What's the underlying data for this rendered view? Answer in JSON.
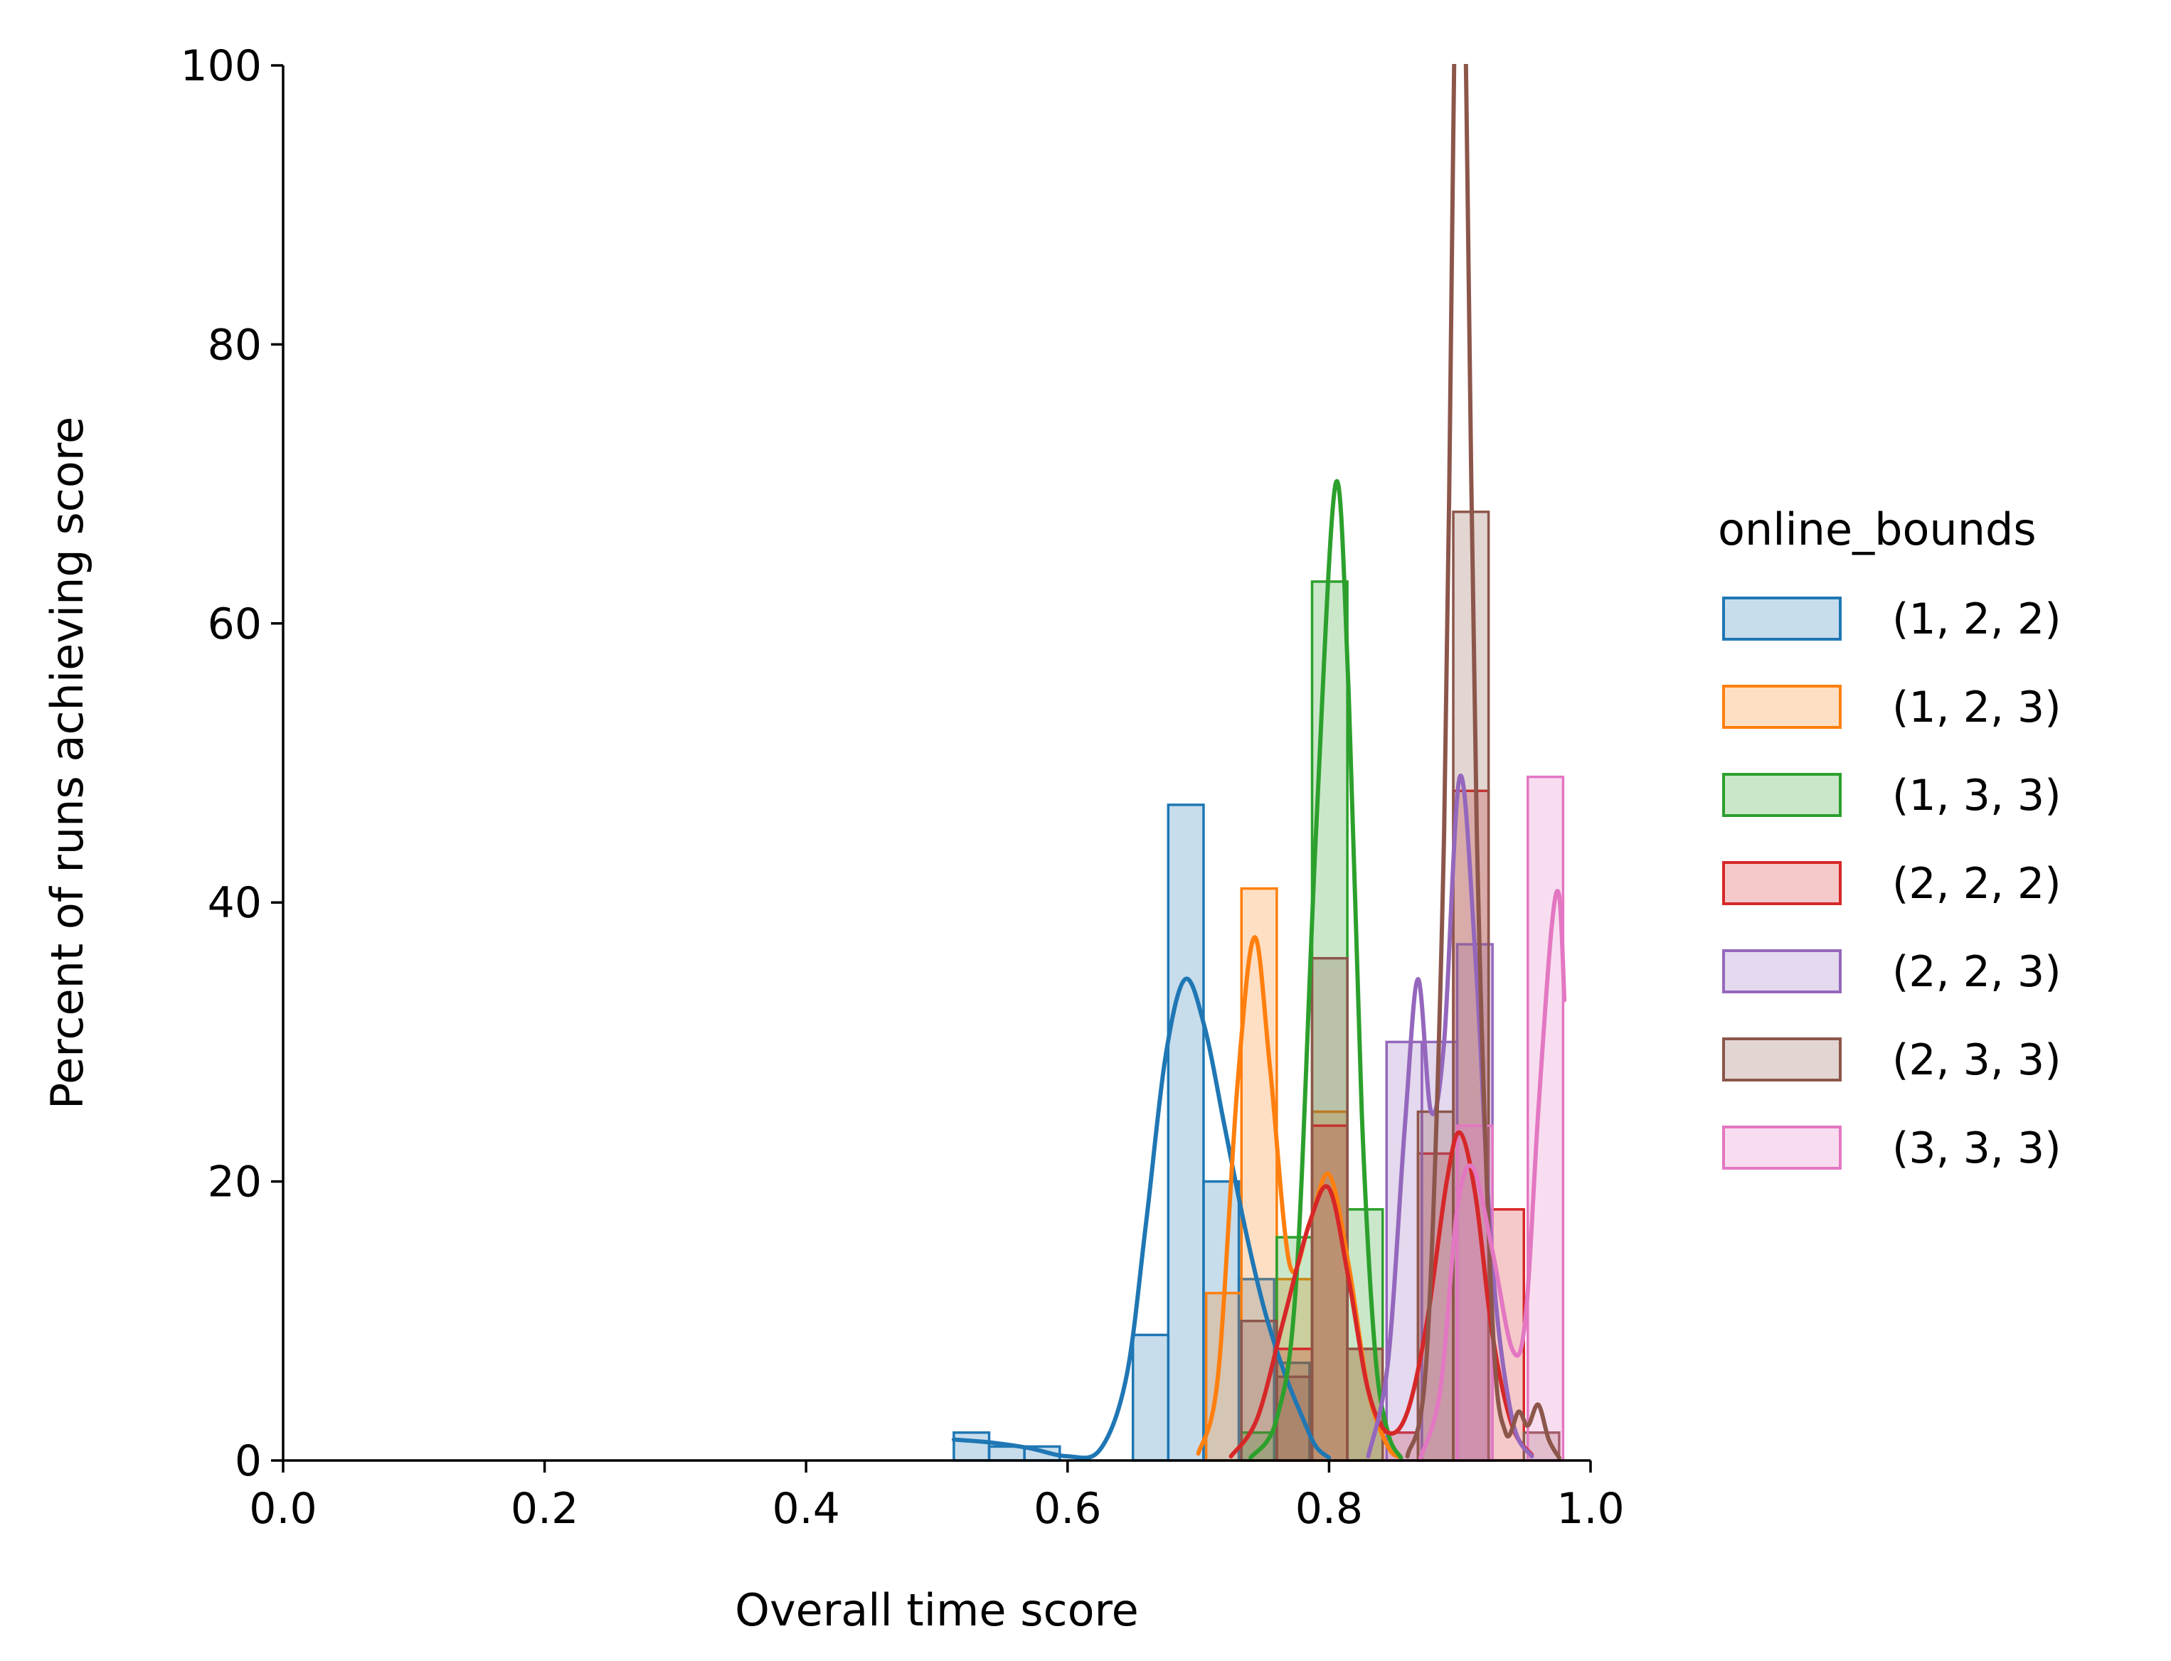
{
  "chart_data": {
    "type": "histogram",
    "xlabel": "Overall time score",
    "ylabel": "Percent of runs achieving score",
    "xlim": [
      0.0,
      1.0
    ],
    "ylim": [
      0,
      100
    ],
    "xticks": [
      "0.0",
      "0.2",
      "0.4",
      "0.6",
      "0.8",
      "1.0"
    ],
    "yticks": [
      "0",
      "20",
      "40",
      "60",
      "80",
      "100"
    ],
    "grid": false,
    "legend": {
      "title": "online_bounds",
      "placement": "right"
    },
    "kde": true,
    "series": [
      {
        "name": "(1, 2, 2)",
        "color": "#1f77b4",
        "bins": [
          {
            "x0": 0.513,
            "x1": 0.54,
            "y": 2
          },
          {
            "x0": 0.54,
            "x1": 0.567,
            "y": 1
          },
          {
            "x0": 0.567,
            "x1": 0.594,
            "y": 1
          },
          {
            "x0": 0.65,
            "x1": 0.677,
            "y": 9
          },
          {
            "x0": 0.677,
            "x1": 0.704,
            "y": 47
          },
          {
            "x0": 0.704,
            "x1": 0.731,
            "y": 20
          },
          {
            "x0": 0.731,
            "x1": 0.758,
            "y": 13
          },
          {
            "x0": 0.758,
            "x1": 0.785,
            "y": 7
          }
        ],
        "kde": [
          [
            0.513,
            1.5
          ],
          [
            0.54,
            1.3
          ],
          [
            0.57,
            0.9
          ],
          [
            0.6,
            0.3
          ],
          [
            0.625,
            0.8
          ],
          [
            0.645,
            6
          ],
          [
            0.66,
            17
          ],
          [
            0.675,
            29
          ],
          [
            0.69,
            34.5
          ],
          [
            0.705,
            31
          ],
          [
            0.72,
            24
          ],
          [
            0.735,
            17
          ],
          [
            0.75,
            11
          ],
          [
            0.765,
            6.5
          ],
          [
            0.78,
            3
          ],
          [
            0.79,
            1
          ],
          [
            0.8,
            0.2
          ]
        ]
      },
      {
        "name": "(1, 2, 3)",
        "color": "#ff7f0e",
        "bins": [
          {
            "x0": 0.706,
            "x1": 0.733,
            "y": 12
          },
          {
            "x0": 0.733,
            "x1": 0.76,
            "y": 41
          },
          {
            "x0": 0.76,
            "x1": 0.787,
            "y": 13
          },
          {
            "x0": 0.787,
            "x1": 0.814,
            "y": 25
          },
          {
            "x0": 0.814,
            "x1": 0.841,
            "y": 8
          }
        ],
        "kde": [
          [
            0.7,
            0.5
          ],
          [
            0.715,
            6
          ],
          [
            0.73,
            27
          ],
          [
            0.743,
            37.5
          ],
          [
            0.755,
            28
          ],
          [
            0.77,
            14
          ],
          [
            0.785,
            17
          ],
          [
            0.8,
            20.5
          ],
          [
            0.815,
            14
          ],
          [
            0.83,
            5
          ],
          [
            0.845,
            1
          ],
          [
            0.855,
            0.2
          ]
        ]
      },
      {
        "name": "(1, 3, 3)",
        "color": "#2ca02c",
        "bins": [
          {
            "x0": 0.733,
            "x1": 0.76,
            "y": 2
          },
          {
            "x0": 0.76,
            "x1": 0.787,
            "y": 16
          },
          {
            "x0": 0.787,
            "x1": 0.814,
            "y": 63
          },
          {
            "x0": 0.814,
            "x1": 0.841,
            "y": 18
          }
        ],
        "kde": [
          [
            0.74,
            0.2
          ],
          [
            0.76,
            3
          ],
          [
            0.775,
            13
          ],
          [
            0.79,
            45
          ],
          [
            0.805,
            70
          ],
          [
            0.815,
            55
          ],
          [
            0.825,
            25
          ],
          [
            0.835,
            8
          ],
          [
            0.845,
            2
          ],
          [
            0.855,
            0.2
          ]
        ]
      },
      {
        "name": "(2, 2, 2)",
        "color": "#d62728",
        "bins": [
          {
            "x0": 0.76,
            "x1": 0.787,
            "y": 8
          },
          {
            "x0": 0.787,
            "x1": 0.814,
            "y": 24
          },
          {
            "x0": 0.841,
            "x1": 0.868,
            "y": 2
          },
          {
            "x0": 0.868,
            "x1": 0.895,
            "y": 22
          },
          {
            "x0": 0.895,
            "x1": 0.922,
            "y": 48
          },
          {
            "x0": 0.922,
            "x1": 0.949,
            "y": 18
          }
        ],
        "kde": [
          [
            0.725,
            0.3
          ],
          [
            0.745,
            3
          ],
          [
            0.765,
            10
          ],
          [
            0.785,
            17
          ],
          [
            0.8,
            19.5
          ],
          [
            0.815,
            13
          ],
          [
            0.83,
            5
          ],
          [
            0.845,
            2
          ],
          [
            0.86,
            3.5
          ],
          [
            0.875,
            10
          ],
          [
            0.89,
            20
          ],
          [
            0.9,
            23.5
          ],
          [
            0.912,
            19
          ],
          [
            0.925,
            9
          ],
          [
            0.94,
            2.5
          ],
          [
            0.955,
            0.4
          ]
        ]
      },
      {
        "name": "(2, 2, 3)",
        "color": "#9467bd",
        "bins": [
          {
            "x0": 0.844,
            "x1": 0.871,
            "y": 30
          },
          {
            "x0": 0.871,
            "x1": 0.898,
            "y": 30
          },
          {
            "x0": 0.898,
            "x1": 0.925,
            "y": 37
          }
        ],
        "kde": [
          [
            0.83,
            0.3
          ],
          [
            0.845,
            7
          ],
          [
            0.858,
            24
          ],
          [
            0.868,
            34.5
          ],
          [
            0.878,
            25
          ],
          [
            0.888,
            30
          ],
          [
            0.9,
            49
          ],
          [
            0.912,
            36
          ],
          [
            0.925,
            14
          ],
          [
            0.94,
            3
          ],
          [
            0.955,
            0.3
          ]
        ]
      },
      {
        "name": "(2, 3, 3)",
        "color": "#8c564b",
        "bins": [
          {
            "x0": 0.733,
            "x1": 0.76,
            "y": 10
          },
          {
            "x0": 0.76,
            "x1": 0.787,
            "y": 6
          },
          {
            "x0": 0.787,
            "x1": 0.814,
            "y": 36
          },
          {
            "x0": 0.814,
            "x1": 0.841,
            "y": 8
          },
          {
            "x0": 0.868,
            "x1": 0.895,
            "y": 25
          },
          {
            "x0": 0.895,
            "x1": 0.922,
            "y": 68
          },
          {
            "x0": 0.949,
            "x1": 0.976,
            "y": 2
          }
        ],
        "kde": [
          [
            0.86,
            0.3
          ],
          [
            0.875,
            8
          ],
          [
            0.888,
            45
          ],
          [
            0.895,
            95
          ],
          [
            0.9,
            128
          ],
          [
            0.905,
            98
          ],
          [
            0.913,
            45
          ],
          [
            0.925,
            10
          ],
          [
            0.935,
            2
          ],
          [
            0.945,
            3.5
          ],
          [
            0.952,
            2.5
          ],
          [
            0.96,
            4
          ],
          [
            0.968,
            1.5
          ],
          [
            0.976,
            0.2
          ]
        ]
      },
      {
        "name": "(3, 3, 3)",
        "color": "#e377c2",
        "bins": [
          {
            "x0": 0.898,
            "x1": 0.925,
            "y": 24
          },
          {
            "x0": 0.952,
            "x1": 0.979,
            "y": 49
          }
        ],
        "kde": [
          [
            0.87,
            0.2
          ],
          [
            0.885,
            5
          ],
          [
            0.898,
            18
          ],
          [
            0.91,
            21
          ],
          [
            0.925,
            15
          ],
          [
            0.94,
            8
          ],
          [
            0.95,
            10
          ],
          [
            0.96,
            25
          ],
          [
            0.97,
            38
          ],
          [
            0.976,
            40.5
          ],
          [
            0.98,
            33
          ]
        ]
      }
    ]
  }
}
